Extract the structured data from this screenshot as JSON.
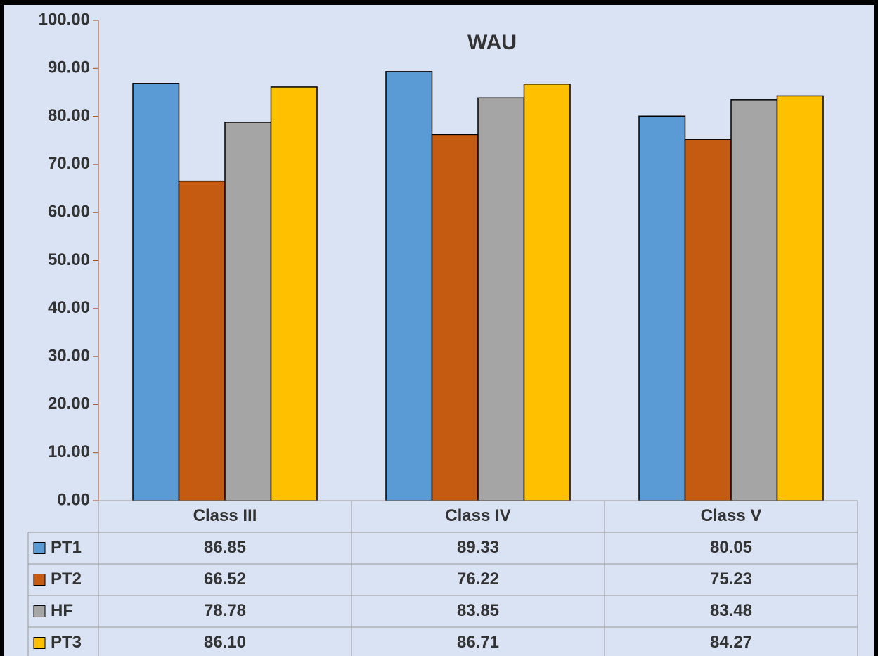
{
  "chart_data": {
    "type": "bar",
    "title": "WAU",
    "categories": [
      "Class III",
      "Class IV",
      "Class V"
    ],
    "series": [
      {
        "name": "PT1",
        "color": "#5b9bd5",
        "values": [
          86.85,
          89.33,
          80.05
        ],
        "value_labels": [
          "86.85",
          "89.33",
          "80.05"
        ]
      },
      {
        "name": "PT2",
        "color": "#c55a11",
        "values": [
          66.52,
          76.22,
          75.23
        ],
        "value_labels": [
          "66.52",
          "76.22",
          "75.23"
        ]
      },
      {
        "name": "HF",
        "color": "#a5a5a5",
        "values": [
          78.78,
          83.85,
          83.48
        ],
        "value_labels": [
          "78.78",
          "83.85",
          "83.48"
        ]
      },
      {
        "name": "PT3",
        "color": "#ffc000",
        "values": [
          86.1,
          86.71,
          84.27
        ],
        "value_labels": [
          "86.10",
          "86.71",
          "84.27"
        ]
      }
    ],
    "ylim": [
      0,
      100
    ],
    "yticks": [
      {
        "value": 0,
        "label": "0.00"
      },
      {
        "value": 10,
        "label": "10.00"
      },
      {
        "value": 20,
        "label": "20.00"
      },
      {
        "value": 30,
        "label": "30.00"
      },
      {
        "value": 40,
        "label": "40.00"
      },
      {
        "value": 50,
        "label": "50.00"
      },
      {
        "value": 60,
        "label": "60.00"
      },
      {
        "value": 70,
        "label": "70.00"
      },
      {
        "value": 80,
        "label": "80.00"
      },
      {
        "value": 90,
        "label": "90.00"
      },
      {
        "value": 100,
        "label": "100.00"
      }
    ],
    "grid": false,
    "data_table": true
  }
}
